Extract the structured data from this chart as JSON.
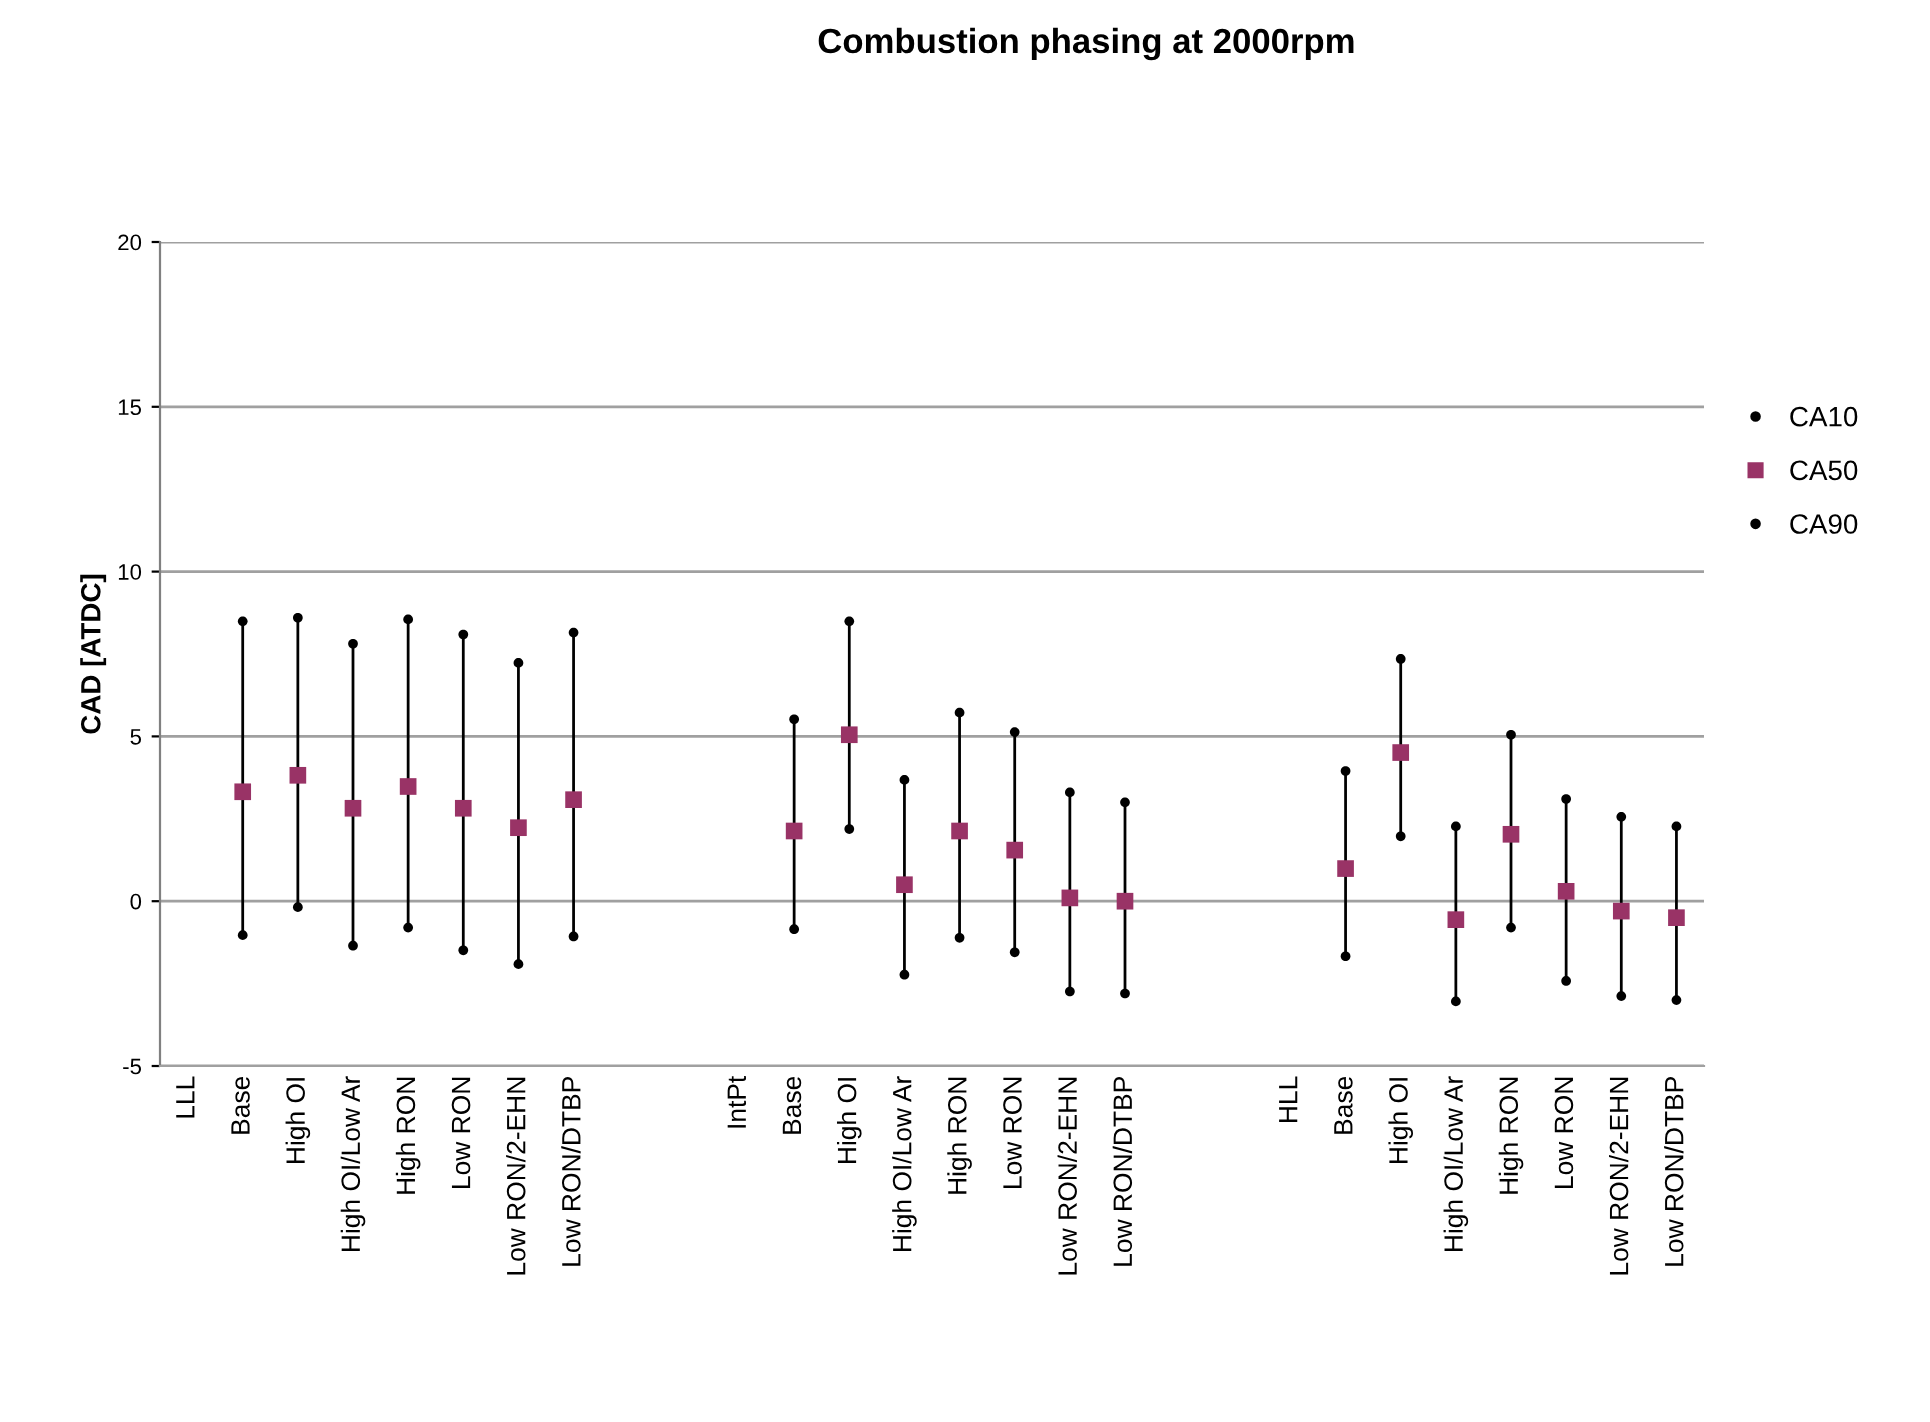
{
  "chart_data": {
    "type": "scatter",
    "title": "Combustion phasing at 2000rpm",
    "ylabel": "CAD [ATDC]",
    "categories": [
      "LLL",
      "Base",
      "High OI",
      "High OI/Low Ar",
      "High RON",
      "Low RON",
      "Low RON/2-EHN",
      "Low RON/DTBP",
      null,
      null,
      "IntPt",
      "Base",
      "High OI",
      "High OI/Low Ar",
      "High RON",
      "Low RON",
      "Low RON/2-EHN",
      "Low RON/DTBP",
      null,
      null,
      "HLL",
      "Base",
      "High OI",
      "High OI/Low Ar",
      "High RON",
      "Low RON",
      "Low RON/2-EHN",
      "Low RON/DTBP"
    ],
    "series": [
      {
        "name": "CA10",
        "color": "#000000",
        "marker": "circle",
        "values": [
          null,
          -1.03,
          -0.18,
          -1.35,
          -0.8,
          -1.49,
          -1.91,
          -1.07,
          null,
          null,
          null,
          -0.85,
          2.19,
          -2.23,
          -1.11,
          -1.55,
          -2.74,
          -2.8,
          null,
          null,
          null,
          -1.67,
          1.97,
          -3.04,
          -0.8,
          -2.42,
          -2.88,
          -3.0
        ]
      },
      {
        "name": "CA50",
        "color": "#993366",
        "marker": "square",
        "values": [
          null,
          3.32,
          3.82,
          2.82,
          3.48,
          2.82,
          2.23,
          3.08,
          null,
          null,
          null,
          2.13,
          5.05,
          0.5,
          2.13,
          1.55,
          0.1,
          0.0,
          null,
          null,
          null,
          0.99,
          4.51,
          -0.56,
          2.03,
          0.3,
          -0.3,
          -0.5
        ]
      },
      {
        "name": "CA90",
        "color": "#000000",
        "marker": "circle",
        "values": [
          null,
          8.49,
          8.6,
          7.81,
          8.55,
          8.09,
          7.23,
          8.15,
          null,
          null,
          null,
          5.52,
          8.49,
          3.68,
          5.72,
          5.13,
          3.3,
          3.0,
          null,
          null,
          null,
          3.95,
          7.35,
          2.27,
          5.05,
          3.1,
          2.56,
          2.27
        ]
      }
    ],
    "ylim": [
      -5,
      20
    ],
    "yticks": [
      -5,
      0,
      5,
      10,
      15,
      20
    ],
    "grid": "y",
    "legend": "right"
  }
}
